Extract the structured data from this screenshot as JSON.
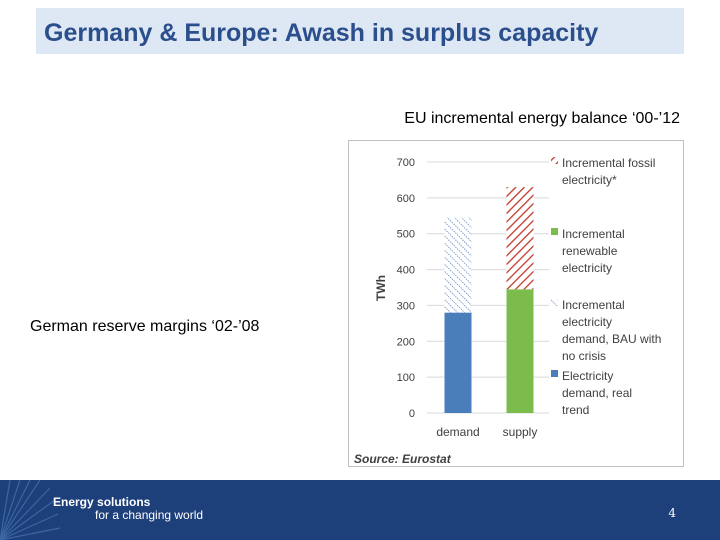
{
  "slide": {
    "title": "Germany & Europe: Awash in surplus capacity",
    "side_label": "German reserve margins ‘02-’08",
    "page_number": "4"
  },
  "footer": {
    "brand_line1": "Energy solutions",
    "brand_line2": "for a changing world"
  },
  "chart_data": {
    "type": "bar",
    "stacked": true,
    "title": "EU incremental energy balance ‘00-’12",
    "categories": [
      "demand",
      "supply"
    ],
    "ylabel": "TWh",
    "xlabel": "",
    "ylim": [
      0,
      700
    ],
    "yticks": [
      "0",
      "100",
      "200",
      "300",
      "400",
      "500",
      "600",
      "700"
    ],
    "grid": true,
    "legend_position": "right",
    "source": "Source: Eurostat",
    "series": [
      {
        "name": "Electricity demand, real trend",
        "values": [
          280,
          0
        ],
        "color": "#4a7ebb",
        "pattern": "solid",
        "legend_lines": [
          "Electricity",
          "demand, real",
          "trend"
        ]
      },
      {
        "name": "Incremental electricity demand, BAU with no crisis",
        "values": [
          265,
          0
        ],
        "color": "#4a7ebb",
        "pattern": "dotted-hatch",
        "legend_lines": [
          "Incremental",
          "electricity",
          "demand, BAU with",
          "no crisis"
        ]
      },
      {
        "name": "Incremental renewable electricity",
        "values": [
          0,
          345
        ],
        "color": "#7cbc4c",
        "pattern": "solid",
        "legend_lines": [
          "Incremental",
          "renewable",
          "electricity"
        ]
      },
      {
        "name": "Incremental fossil electricity*",
        "values": [
          0,
          285
        ],
        "color": "#c0392b",
        "pattern": "diagonal-hatch",
        "legend_lines": [
          "Incremental fossil",
          "electricity*"
        ]
      }
    ]
  }
}
